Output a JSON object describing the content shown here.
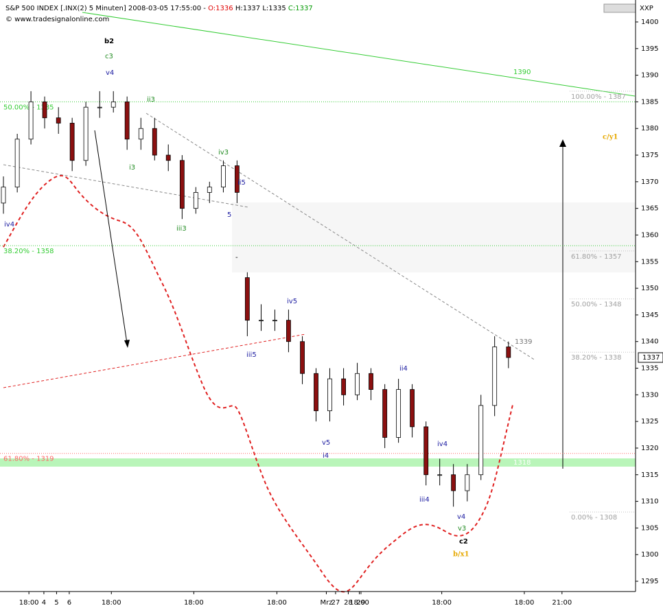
{
  "header": {
    "title": "S&P 500 INDEX [.INX(2)  5 Minuten] 2008-03-05 17:55:00 -",
    "open": "O:1336",
    "high": "H:1337",
    "low": "L:1335",
    "close": "C:1337",
    "copyright": "© www.tradesignalonline.com",
    "axis_label": "XXP"
  },
  "chart_data": {
    "type": "candlestick",
    "x": [
      0.81,
      1.9,
      2.98,
      4.06,
      5.15,
      6.23,
      7.31,
      8.4,
      9.48,
      10.56,
      11.65,
      12.73,
      13.81,
      14.9,
      15.98,
      17.06,
      18.15,
      19.23,
      20.04,
      21.13,
      22.21,
      23.29,
      24.38,
      25.46,
      26.54,
      27.63,
      28.71,
      29.79,
      30.88,
      31.96,
      33.04,
      34.13,
      35.21,
      36.29,
      37.38,
      38.46,
      39.54,
      40.63
    ],
    "open": [
      1366,
      1369,
      1378,
      1385,
      1382,
      1381,
      1374,
      1384,
      1384,
      1385,
      1378,
      1380,
      1375,
      1374,
      1365,
      1368,
      1369,
      1373,
      1352,
      1344,
      1344,
      1344,
      1340,
      1334,
      1327,
      1333,
      1330,
      1334,
      1331,
      1322,
      1331,
      1324,
      1315,
      1315,
      1312,
      1315,
      1328,
      1339
    ],
    "high": [
      1371,
      1379,
      1387,
      1386,
      1384,
      1382,
      1385,
      1387,
      1387,
      1386,
      1382,
      1382,
      1377,
      1375,
      1369,
      1370,
      1374,
      1374,
      1353,
      1347,
      1346,
      1346,
      1341,
      1335,
      1335,
      1335,
      1336,
      1335,
      1332,
      1333,
      1332,
      1325,
      1318,
      1317,
      1317,
      1330,
      1341,
      1340
    ],
    "low": [
      1364,
      1368,
      1377,
      1380,
      1379,
      1372,
      1373,
      1382,
      1383,
      1376,
      1376,
      1374,
      1372,
      1363,
      1364,
      1366,
      1368,
      1366,
      1341,
      1342,
      1342,
      1338,
      1332,
      1325,
      1325,
      1328,
      1329,
      1329,
      1320,
      1321,
      1322,
      1313,
      1313,
      1309,
      1310,
      1314,
      1326,
      1335
    ],
    "close": [
      1369,
      1378,
      1385,
      1382,
      1381,
      1374,
      1384,
      1384,
      1385,
      1378,
      1380,
      1375,
      1374,
      1365,
      1368,
      1369,
      1373,
      1368,
      1344,
      1344,
      1344,
      1340,
      1334,
      1327,
      1333,
      1330,
      1334,
      1331,
      1322,
      1331,
      1324,
      1315,
      1315,
      1312,
      1315,
      1328,
      1339,
      1337
    ],
    "up_color": "#ffffff",
    "down_color": "#8b1010",
    "xlim": [
      0.54,
      50.65
    ],
    "ylim": [
      1293.07,
      1404.12
    ],
    "xticks": [
      {
        "value": 2.82,
        "label": "18:00"
      },
      27,
      {
        "value": 9.32,
        "label": "18:00"
      },
      28,
      {
        "value": 15.82,
        "label": "18:00"
      },
      29,
      {
        "value": 22.37,
        "label": "18:00"
      },
      {
        "value": 26.27,
        "label": "Mrz"
      },
      {
        "value": 28.87,
        "label": "18:00"
      },
      4,
      {
        "value": 35.37,
        "label": "18:00"
      },
      5,
      {
        "value": 41.88,
        "label": "18:00"
      },
      {
        "value": 44.85,
        "label": "21:00"
      },
      6
    ],
    "xtick_pos": null,
    "yticks": [
      1295,
      1300,
      1305,
      1310,
      1315,
      1320,
      1325,
      1330,
      1335,
      1340,
      1345,
      1350,
      1355,
      1360,
      1365,
      1370,
      1375,
      1380,
      1385,
      1390,
      1395,
      1400
    ],
    "last_price": 1337,
    "levels": [
      {
        "label": "50.00% - 1385",
        "value": 1385,
        "color": "#33cc33",
        "side": "left"
      },
      {
        "label": "38.20% - 1358",
        "value": 1358,
        "color": "#33cc33",
        "side": "left"
      },
      {
        "label": "61.80% - 1319",
        "value": 1319,
        "color": "#ff6666",
        "side": "left"
      },
      {
        "label": "100.00% - 1387",
        "value": 1387,
        "color": "#c0c0c0",
        "side": "right"
      },
      {
        "label": "61.80% - 1357",
        "value": 1357,
        "color": "#c0c0c0",
        "side": "right"
      },
      {
        "label": "50.00% - 1348",
        "value": 1348,
        "color": "#c0c0c0",
        "side": "right"
      },
      {
        "label": "38.20% - 1338",
        "value": 1338,
        "color": "#c0c0c0",
        "side": "right"
      },
      {
        "label": "0.00% - 1308",
        "value": 1308,
        "color": "#c0c0c0",
        "side": "right"
      }
    ],
    "annotations": [
      "b2",
      "c3",
      "v4",
      "ii3",
      "i3",
      "iv3",
      "ii5",
      "5",
      "iii3",
      "iv4",
      "iv5",
      "iii5",
      "v5",
      "i4",
      "ii4",
      "iv4",
      "iii4",
      "v4",
      "v3",
      "c2",
      "b/x1",
      "c/y1",
      "-",
      "1390",
      "1339",
      "1318"
    ]
  }
}
